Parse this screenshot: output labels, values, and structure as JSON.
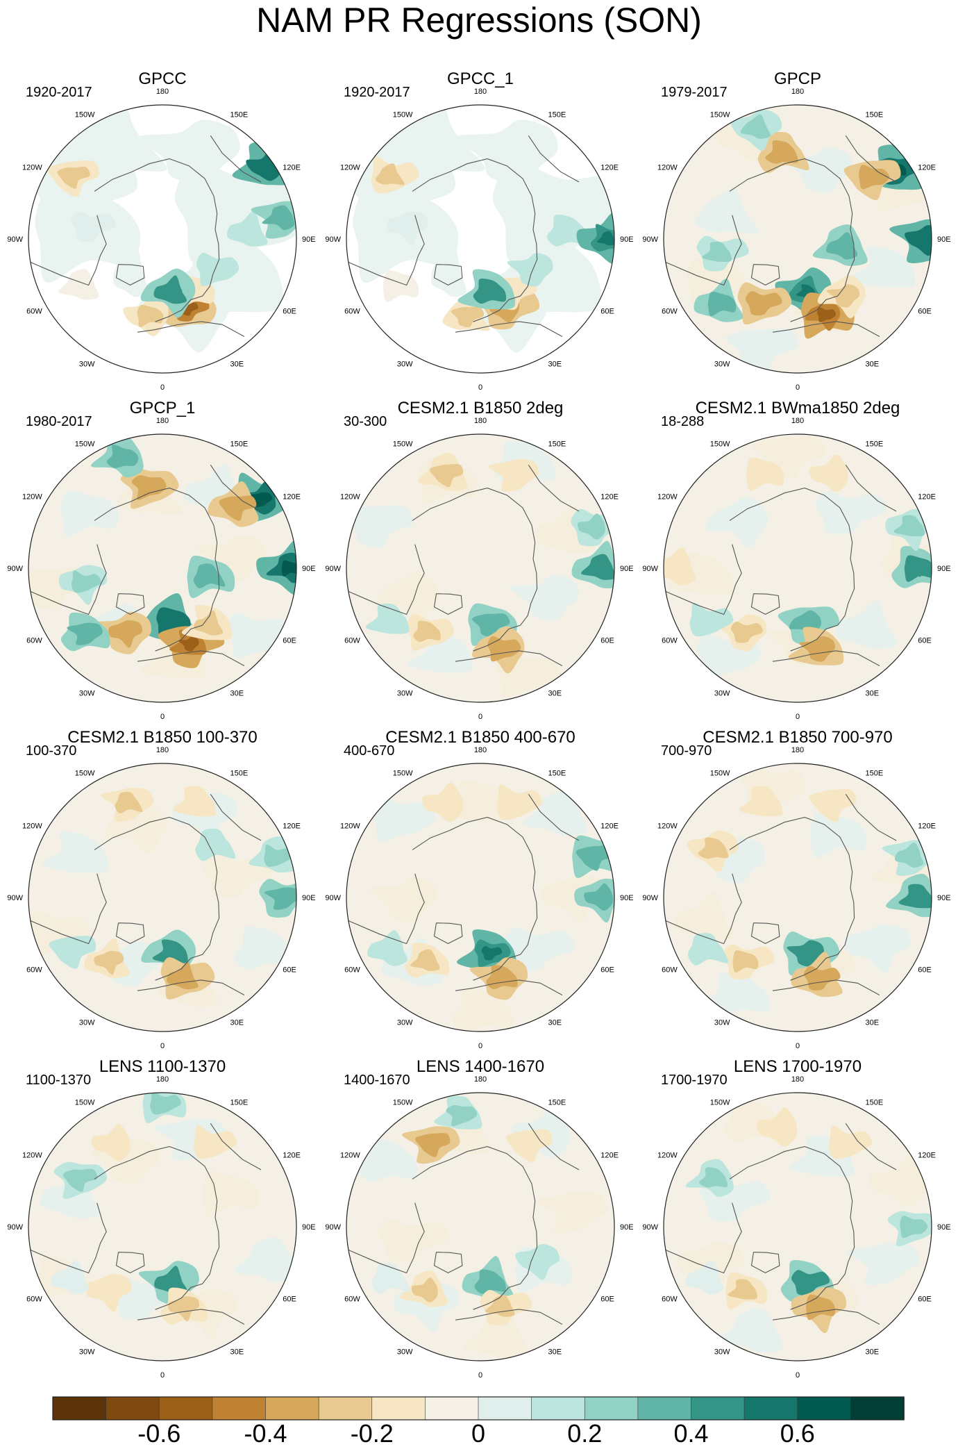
{
  "title": "NAM PR Regressions (SON)",
  "panels": [
    {
      "title": "GPCC",
      "period": "1920-2017",
      "coverage": "land"
    },
    {
      "title": "GPCC_1",
      "period": "1920-2017",
      "coverage": "land"
    },
    {
      "title": "GPCP",
      "period": "1979-2017",
      "coverage": "full"
    },
    {
      "title": "GPCP_1",
      "period": "1980-2017",
      "coverage": "full"
    },
    {
      "title": "CESM2.1 B1850 2deg",
      "period": "30-300",
      "coverage": "full"
    },
    {
      "title": "CESM2.1 BWma1850 2deg",
      "period": "18-288",
      "coverage": "full"
    },
    {
      "title": "CESM2.1 B1850 100-370",
      "period": "100-370",
      "coverage": "full"
    },
    {
      "title": "CESM2.1 B1850 400-670",
      "period": "400-670",
      "coverage": "full"
    },
    {
      "title": "CESM2.1 B1850 700-970",
      "period": "700-970",
      "coverage": "full"
    },
    {
      "title": "LENS 1100-1370",
      "period": "1100-1370",
      "coverage": "full"
    },
    {
      "title": "LENS 1400-1670",
      "period": "1400-1670",
      "coverage": "full"
    },
    {
      "title": "LENS 1700-1970",
      "period": "1700-1970",
      "coverage": "full"
    }
  ],
  "longitude_labels": [
    {
      "lon": 180,
      "label": "180"
    },
    {
      "lon": 150,
      "label": "150E"
    },
    {
      "lon": 120,
      "label": "120E"
    },
    {
      "lon": 90,
      "label": "90E"
    },
    {
      "lon": 60,
      "label": "60E"
    },
    {
      "lon": 30,
      "label": "30E"
    },
    {
      "lon": 0,
      "label": "0"
    },
    {
      "lon": -30,
      "label": "30W"
    },
    {
      "lon": -60,
      "label": "60W"
    },
    {
      "lon": -90,
      "label": "90W"
    },
    {
      "lon": -120,
      "label": "120W"
    },
    {
      "lon": -150,
      "label": "150W"
    }
  ],
  "colorbar": {
    "colors": [
      "#5b3409",
      "#7e4a0f",
      "#9d6019",
      "#bf8233",
      "#d5a85b",
      "#e8ca91",
      "#f6e6c3",
      "#f4f0e5",
      "#e0efec",
      "#bce5dd",
      "#91d2c4",
      "#60b5a6",
      "#349486",
      "#15776b",
      "#035a4f",
      "#013f34"
    ],
    "tick_labels": [
      "-0.6",
      "-0.4",
      "-0.2",
      "0",
      "0.2",
      "0.4",
      "0.6"
    ]
  },
  "chart_data": {
    "type": "heatmap",
    "title": "NAM PR Regressions (SON)",
    "projection": "north polar stereographic",
    "color_levels": [
      -0.7,
      -0.6,
      -0.5,
      -0.4,
      -0.3,
      -0.2,
      -0.1,
      0,
      0.1,
      0.2,
      0.3,
      0.4,
      0.5,
      0.6,
      0.7
    ],
    "colorbar_ticks": [
      -0.6,
      -0.4,
      -0.2,
      0,
      0.2,
      0.4,
      0.6
    ],
    "anomalies": [
      {
        "panel": "GPCC",
        "features": [
          {
            "lon": 20,
            "r": 0.55,
            "v": -0.5
          },
          {
            "lon": -10,
            "r": 0.58,
            "v": -0.3
          },
          {
            "lon": 30,
            "r": 0.45,
            "v": -0.25
          },
          {
            "lon": 10,
            "r": 0.4,
            "v": 0.5
          },
          {
            "lon": 60,
            "r": 0.45,
            "v": 0.2
          },
          {
            "lon": 95,
            "r": 0.65,
            "v": 0.2
          },
          {
            "lon": -100,
            "r": 0.55,
            "v": 0.15
          },
          {
            "lon": -60,
            "r": 0.7,
            "v": -0.15
          },
          {
            "lon": 100,
            "r": 0.9,
            "v": 0.4
          },
          {
            "lon": 125,
            "r": 0.95,
            "v": 0.6
          },
          {
            "lon": -125,
            "r": 0.82,
            "v": -0.3
          }
        ]
      },
      {
        "panel": "GPCC_1",
        "features": [
          {
            "lon": 20,
            "r": 0.55,
            "v": -0.45
          },
          {
            "lon": -10,
            "r": 0.58,
            "v": -0.3
          },
          {
            "lon": 30,
            "r": 0.45,
            "v": -0.25
          },
          {
            "lon": 10,
            "r": 0.4,
            "v": 0.5
          },
          {
            "lon": 60,
            "r": 0.45,
            "v": 0.2
          },
          {
            "lon": 95,
            "r": 0.65,
            "v": 0.2
          },
          {
            "lon": -100,
            "r": 0.55,
            "v": 0.15
          },
          {
            "lon": -60,
            "r": 0.7,
            "v": -0.15
          },
          {
            "lon": 90,
            "r": 0.95,
            "v": 0.55
          },
          {
            "lon": -125,
            "r": 0.82,
            "v": -0.3
          }
        ]
      },
      {
        "panel": "GPCP",
        "features": [
          {
            "lon": 10,
            "r": 0.4,
            "v": 0.55
          },
          {
            "lon": 20,
            "r": 0.6,
            "v": -0.55
          },
          {
            "lon": 40,
            "r": 0.55,
            "v": -0.35
          },
          {
            "lon": -30,
            "r": 0.55,
            "v": -0.45
          },
          {
            "lon": -50,
            "r": 0.75,
            "v": 0.4
          },
          {
            "lon": -80,
            "r": 0.6,
            "v": 0.3
          },
          {
            "lon": 80,
            "r": 0.35,
            "v": 0.45
          },
          {
            "lon": 90,
            "r": 0.95,
            "v": 0.6
          },
          {
            "lon": 125,
            "r": 0.9,
            "v": 0.65
          },
          {
            "lon": 130,
            "r": 0.72,
            "v": -0.4
          },
          {
            "lon": -170,
            "r": 0.65,
            "v": -0.45
          },
          {
            "lon": -160,
            "r": 0.88,
            "v": 0.35
          }
        ]
      },
      {
        "panel": "GPCP_1",
        "features": [
          {
            "lon": 10,
            "r": 0.4,
            "v": 0.6
          },
          {
            "lon": 20,
            "r": 0.6,
            "v": -0.55
          },
          {
            "lon": 40,
            "r": 0.55,
            "v": -0.35
          },
          {
            "lon": -30,
            "r": 0.55,
            "v": -0.45
          },
          {
            "lon": -50,
            "r": 0.75,
            "v": 0.4
          },
          {
            "lon": -80,
            "r": 0.6,
            "v": 0.3
          },
          {
            "lon": 80,
            "r": 0.35,
            "v": 0.45
          },
          {
            "lon": 90,
            "r": 0.95,
            "v": 0.65
          },
          {
            "lon": 125,
            "r": 0.9,
            "v": 0.65
          },
          {
            "lon": 130,
            "r": 0.72,
            "v": -0.45
          },
          {
            "lon": -170,
            "r": 0.62,
            "v": -0.45
          },
          {
            "lon": -160,
            "r": 0.88,
            "v": 0.4
          }
        ]
      },
      {
        "panel": "CESM2.1 B1850 2deg",
        "features": [
          {
            "lon": 10,
            "r": 0.42,
            "v": 0.45
          },
          {
            "lon": 15,
            "r": 0.62,
            "v": -0.45
          },
          {
            "lon": -40,
            "r": 0.62,
            "v": -0.3
          },
          {
            "lon": 90,
            "r": 0.9,
            "v": 0.5
          },
          {
            "lon": 110,
            "r": 0.9,
            "v": 0.35
          },
          {
            "lon": -160,
            "r": 0.75,
            "v": -0.35
          },
          {
            "lon": 160,
            "r": 0.75,
            "v": -0.25
          },
          {
            "lon": -60,
            "r": 0.78,
            "v": 0.2
          }
        ]
      },
      {
        "panel": "CESM2.1 BWma1850 2deg",
        "features": [
          {
            "lon": 10,
            "r": 0.42,
            "v": 0.45
          },
          {
            "lon": 15,
            "r": 0.62,
            "v": -0.45
          },
          {
            "lon": -40,
            "r": 0.62,
            "v": -0.3
          },
          {
            "lon": 90,
            "r": 0.9,
            "v": 0.5
          },
          {
            "lon": 110,
            "r": 0.9,
            "v": 0.35
          },
          {
            "lon": -160,
            "r": 0.75,
            "v": -0.2
          },
          {
            "lon": 160,
            "r": 0.75,
            "v": -0.2
          },
          {
            "lon": -60,
            "r": 0.78,
            "v": 0.2
          },
          {
            "lon": -90,
            "r": 0.9,
            "v": -0.25
          }
        ]
      },
      {
        "panel": "CESM2.1 B1850 100-370",
        "features": [
          {
            "lon": 10,
            "r": 0.42,
            "v": 0.5
          },
          {
            "lon": 15,
            "r": 0.62,
            "v": -0.45
          },
          {
            "lon": -40,
            "r": 0.62,
            "v": -0.3
          },
          {
            "lon": 90,
            "r": 0.9,
            "v": 0.4
          },
          {
            "lon": 110,
            "r": 0.9,
            "v": 0.3
          },
          {
            "lon": -160,
            "r": 0.75,
            "v": -0.3
          },
          {
            "lon": 160,
            "r": 0.75,
            "v": -0.2
          },
          {
            "lon": -60,
            "r": 0.78,
            "v": 0.2
          },
          {
            "lon": 135,
            "r": 0.55,
            "v": 0.2
          }
        ]
      },
      {
        "panel": "CESM2.1 B1850 400-670",
        "features": [
          {
            "lon": 10,
            "r": 0.42,
            "v": 0.55
          },
          {
            "lon": 15,
            "r": 0.62,
            "v": -0.45
          },
          {
            "lon": -40,
            "r": 0.62,
            "v": -0.3
          },
          {
            "lon": 90,
            "r": 0.9,
            "v": 0.4
          },
          {
            "lon": 110,
            "r": 0.9,
            "v": 0.45
          },
          {
            "lon": -160,
            "r": 0.75,
            "v": -0.25
          },
          {
            "lon": 160,
            "r": 0.75,
            "v": -0.25
          },
          {
            "lon": -60,
            "r": 0.78,
            "v": 0.2
          }
        ]
      },
      {
        "panel": "CESM2.1 B1850 700-970",
        "features": [
          {
            "lon": 10,
            "r": 0.42,
            "v": 0.5
          },
          {
            "lon": 15,
            "r": 0.62,
            "v": -0.45
          },
          {
            "lon": -40,
            "r": 0.62,
            "v": -0.3
          },
          {
            "lon": 90,
            "r": 0.9,
            "v": 0.5
          },
          {
            "lon": 110,
            "r": 0.9,
            "v": 0.35
          },
          {
            "lon": -160,
            "r": 0.75,
            "v": -0.2
          },
          {
            "lon": 160,
            "r": 0.75,
            "v": -0.2
          },
          {
            "lon": -60,
            "r": 0.78,
            "v": 0.2
          },
          {
            "lon": -120,
            "r": 0.72,
            "v": -0.35
          }
        ]
      },
      {
        "panel": "LENS 1100-1370",
        "features": [
          {
            "lon": 10,
            "r": 0.42,
            "v": 0.5
          },
          {
            "lon": 15,
            "r": 0.62,
            "v": -0.35
          },
          {
            "lon": -40,
            "r": 0.62,
            "v": -0.25
          },
          {
            "lon": 180,
            "r": 0.92,
            "v": 0.35
          },
          {
            "lon": -150,
            "r": 0.72,
            "v": -0.2
          },
          {
            "lon": 150,
            "r": 0.72,
            "v": -0.2
          },
          {
            "lon": -60,
            "r": 0.78,
            "v": 0.15
          },
          {
            "lon": -120,
            "r": 0.72,
            "v": 0.35
          }
        ]
      },
      {
        "panel": "LENS 1400-1670",
        "features": [
          {
            "lon": 10,
            "r": 0.42,
            "v": 0.45
          },
          {
            "lon": 15,
            "r": 0.62,
            "v": -0.3
          },
          {
            "lon": -40,
            "r": 0.62,
            "v": -0.3
          },
          {
            "lon": -150,
            "r": 0.72,
            "v": -0.4
          },
          {
            "lon": -170,
            "r": 0.85,
            "v": 0.3
          },
          {
            "lon": 150,
            "r": 0.72,
            "v": -0.2
          },
          {
            "lon": -60,
            "r": 0.78,
            "v": 0.15
          },
          {
            "lon": 60,
            "r": 0.5,
            "v": 0.2
          }
        ]
      },
      {
        "panel": "LENS 1700-1970",
        "features": [
          {
            "lon": 10,
            "r": 0.42,
            "v": 0.5
          },
          {
            "lon": 15,
            "r": 0.62,
            "v": -0.45
          },
          {
            "lon": -40,
            "r": 0.62,
            "v": -0.3
          },
          {
            "lon": -170,
            "r": 0.75,
            "v": -0.25
          },
          {
            "lon": 150,
            "r": 0.72,
            "v": -0.2
          },
          {
            "lon": -60,
            "r": 0.78,
            "v": 0.15
          },
          {
            "lon": 90,
            "r": 0.85,
            "v": 0.3
          },
          {
            "lon": -120,
            "r": 0.72,
            "v": 0.3
          }
        ]
      }
    ]
  }
}
